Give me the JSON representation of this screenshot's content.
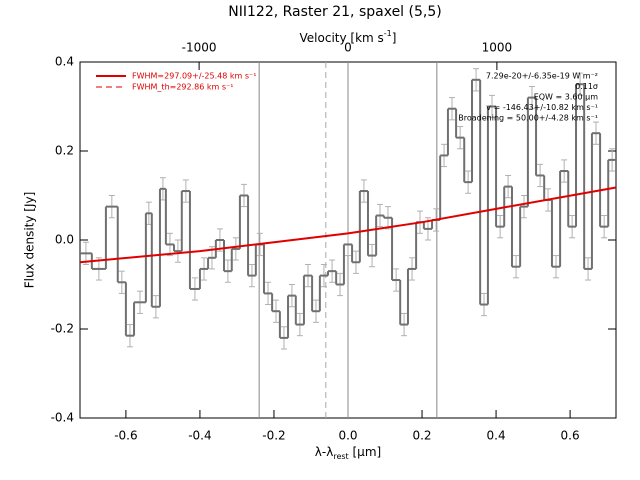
{
  "chart_data": {
    "type": "histogram",
    "title": "NII122, Raster 21, spaxel (5,5)",
    "xlabel": [
      "λ-λ",
      "rest",
      " [μm]"
    ],
    "ylabel": "Flux density [Jy]",
    "x2label": [
      "Velocity [km s",
      "-1",
      "]"
    ],
    "bins": [
      -0.724,
      -0.692,
      -0.654,
      -0.622,
      -0.6,
      -0.578,
      -0.546,
      -0.53,
      -0.508,
      -0.492,
      -0.47,
      -0.449,
      -0.427,
      -0.4,
      -0.378,
      -0.357,
      -0.335,
      -0.314,
      -0.292,
      -0.27,
      -0.249,
      -0.227,
      -0.205,
      -0.184,
      -0.162,
      -0.141,
      -0.119,
      -0.097,
      -0.076,
      -0.054,
      -0.032,
      -0.011,
      0.011,
      0.032,
      0.054,
      0.076,
      0.097,
      0.119,
      0.141,
      0.162,
      0.184,
      0.205,
      0.227,
      0.249,
      0.27,
      0.292,
      0.314,
      0.335,
      0.357,
      0.378,
      0.4,
      0.422,
      0.443,
      0.465,
      0.486,
      0.508,
      0.53,
      0.551,
      0.573,
      0.595,
      0.616,
      0.638,
      0.659,
      0.681,
      0.703,
      0.724
    ],
    "values": [
      -0.03,
      -0.065,
      0.075,
      -0.095,
      -0.215,
      -0.14,
      0.06,
      -0.15,
      0.115,
      -0.01,
      -0.025,
      0.11,
      -0.11,
      -0.065,
      -0.04,
      0.0,
      -0.07,
      -0.02,
      0.1,
      -0.08,
      -0.01,
      -0.12,
      -0.16,
      -0.22,
      -0.125,
      -0.19,
      -0.08,
      -0.16,
      -0.08,
      -0.07,
      -0.1,
      -0.01,
      -0.05,
      0.11,
      -0.035,
      0.055,
      0.05,
      -0.09,
      -0.19,
      -0.065,
      0.04,
      0.025,
      0.045,
      0.19,
      0.295,
      0.23,
      0.13,
      0.36,
      -0.145,
      0.3,
      0.03,
      0.12,
      -0.06,
      0.075,
      0.32,
      0.145,
      0.09,
      -0.06,
      0.155,
      0.03,
      0.35,
      -0.065,
      0.24,
      0.03,
      0.18
    ],
    "error": 0.025,
    "color": "#707070",
    "error_color": "#b0b0b0",
    "fit": {
      "color": "#e00000",
      "x": [
        -0.724,
        -0.4,
        -0.2,
        0.0,
        0.2,
        0.4,
        0.724
      ],
      "values": [
        -0.05,
        -0.025,
        -0.005,
        0.015,
        0.04,
        0.07,
        0.118
      ]
    },
    "vlines": [
      -0.24,
      0.0,
      0.24
    ],
    "dashed_vline": -0.06,
    "xlim": [
      -0.724,
      0.724
    ],
    "ylim": [
      -0.4,
      0.4
    ],
    "x2lim": [
      -1800,
      1800
    ],
    "xticks": [
      -0.6,
      -0.4,
      -0.2,
      {
        "value": 0,
        "label": "0.0"
      },
      0.2,
      0.4,
      0.6
    ],
    "yticks": [
      -0.4,
      -0.2,
      {
        "value": 0,
        "label": "0.0"
      },
      0.2,
      0.4
    ],
    "x2ticks": [
      -1000,
      0,
      1000
    ],
    "legend": [
      {
        "label": "FWHM=297.09+/-25.48 km s⁻¹",
        "style": "solid"
      },
      {
        "label": "FWHM_th=292.86 km s⁻¹",
        "style": "dashed"
      }
    ],
    "annotations": [
      "7.29e-20+/-6.35e-19 W m⁻²",
      "0.11σ",
      "EQW = 3.60 μm",
      "v = -146.43+/-10.82 km s⁻¹",
      "Broadening = 50.00+/-4.28 km s⁻¹"
    ]
  }
}
